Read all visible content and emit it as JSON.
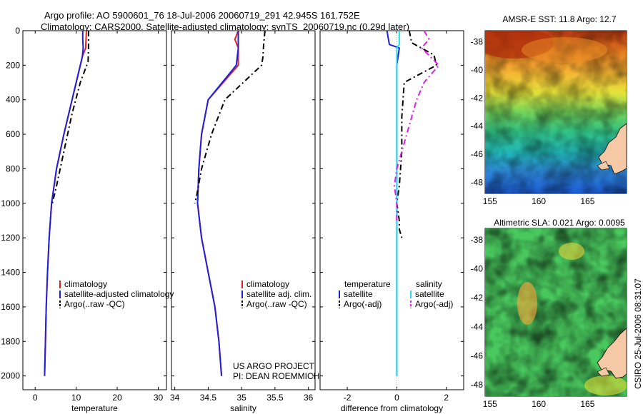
{
  "title": {
    "line1": "Argo profile: AO 5900601_76 18-Jul-2006 20060719_291 42.945S 161.752E",
    "line2": "Climatology: CARS2000. Satellite-adjusted climatology: synTS_20060719.nc (0.29d later)"
  },
  "credit": {
    "line1": "US ARGO PROJECT",
    "line2": "PI: DEAN ROEMMICH"
  },
  "timestamp": "CSIRO 25-Jul-2006 08:31:07",
  "colors": {
    "climatology": "#e0201e",
    "satellite": "#1f1fe0",
    "argo": "#000000",
    "satellite_salinity": "#22e0e8",
    "argo_adj_salinity": "#e020e0"
  },
  "depth_axis": {
    "ticks": [
      "0",
      "200",
      "400",
      "600",
      "800",
      "1000",
      "1200",
      "1400",
      "1600",
      "1800",
      "2000"
    ]
  },
  "chart_data": [
    {
      "type": "line",
      "xlabel": "temperature",
      "xticks": [
        "0",
        "10",
        "20",
        "30"
      ],
      "xlim": [
        -3,
        32
      ],
      "ylim": [
        2080,
        0
      ],
      "y_reversed": true,
      "legend": [
        "climatology",
        "satellite-adjusted climatology",
        "Argo(..raw -QC)"
      ],
      "series": [
        {
          "name": "climatology",
          "color": "#e0201e",
          "x": [
            12.5,
            12.4,
            12.3,
            11.5,
            9.0,
            7.0,
            5.2,
            4.0,
            3.4,
            3.0,
            2.7,
            2.5,
            2.3
          ],
          "y": [
            0,
            50,
            100,
            150,
            400,
            600,
            800,
            1000,
            1200,
            1400,
            1600,
            1800,
            2000
          ]
        },
        {
          "name": "satellite-adjusted climatology",
          "color": "#1f1fe0",
          "x": [
            11.6,
            11.6,
            11.7,
            11.5,
            9.0,
            7.0,
            5.2,
            4.0,
            3.4,
            3.0,
            2.7,
            2.5,
            2.3
          ],
          "y": [
            0,
            50,
            100,
            150,
            400,
            600,
            800,
            1000,
            1200,
            1400,
            1600,
            1800,
            2000
          ]
        },
        {
          "name": "Argo(..raw -QC)",
          "color": "#000000",
          "dash": true,
          "x": [
            13.0,
            13.0,
            13.0,
            12.9,
            11.0,
            9.0,
            7.0,
            5.2,
            4.2
          ],
          "y": [
            0,
            50,
            100,
            180,
            300,
            480,
            700,
            900,
            1000
          ]
        }
      ]
    },
    {
      "type": "line",
      "xlabel": "salinity",
      "xticks": [
        "34",
        "34.5",
        "35",
        "35.5",
        "36"
      ],
      "xlim": [
        33.95,
        36.1
      ],
      "ylim": [
        2080,
        0
      ],
      "y_reversed": true,
      "legend": [
        "climatology",
        "satellite adj. clim.",
        "Argo(..raw -QC)"
      ],
      "series": [
        {
          "name": "climatology",
          "color": "#e0201e",
          "x": [
            34.95,
            34.9,
            34.95,
            34.95,
            34.5,
            34.4,
            34.36,
            34.34,
            34.4,
            34.5,
            34.6,
            34.66,
            34.7
          ],
          "y": [
            0,
            50,
            100,
            200,
            400,
            600,
            800,
            1000,
            1200,
            1400,
            1600,
            1800,
            2000
          ]
        },
        {
          "name": "satellite adj. clim.",
          "color": "#1f1fe0",
          "x": [
            34.95,
            34.95,
            34.95,
            34.92,
            34.5,
            34.4,
            34.36,
            34.34,
            34.4,
            34.5,
            34.6,
            34.66,
            34.7
          ],
          "y": [
            0,
            50,
            100,
            200,
            400,
            600,
            800,
            1000,
            1200,
            1400,
            1600,
            1800,
            2000
          ]
        },
        {
          "name": "Argo(..raw -QC)",
          "color": "#000000",
          "dash": true,
          "x": [
            35.35,
            35.33,
            35.32,
            35.3,
            34.75,
            34.55,
            34.4,
            34.33,
            34.3
          ],
          "y": [
            0,
            80,
            150,
            200,
            400,
            600,
            800,
            950,
            1000
          ]
        }
      ]
    },
    {
      "type": "line",
      "xlabel": "difference from climatology",
      "xticks": [
        "-2",
        "0",
        "2"
      ],
      "xlim": [
        -3.1,
        2.7
      ],
      "ylim": [
        2080,
        0
      ],
      "y_reversed": true,
      "legend": [
        "temperature",
        "satellite",
        "Argo(-adj)",
        "salinity",
        "satellite",
        "Argo(-adj)"
      ],
      "series": [
        {
          "name": "temperature satellite",
          "color": "#1f1fe0",
          "x": [
            -0.4,
            -0.3,
            0.1,
            0.0,
            0.0
          ],
          "y": [
            0,
            80,
            100,
            200,
            2000
          ]
        },
        {
          "name": "temperature Argo(-adj)",
          "color": "#000000",
          "dash": true,
          "x": [
            0.5,
            0.6,
            1.5,
            1.6,
            0.3,
            0.2,
            0.2,
            0.1,
            0.0,
            0.1,
            0.1,
            0.2
          ],
          "y": [
            0,
            70,
            140,
            200,
            300,
            500,
            700,
            900,
            1000,
            1100,
            1150,
            1200
          ]
        },
        {
          "name": "salinity satellite",
          "color": "#22e0e8",
          "x": [
            0.1,
            0.1,
            0.0,
            0.0,
            0.0
          ],
          "y": [
            0,
            80,
            100,
            500,
            2000
          ]
        },
        {
          "name": "salinity Argo(-adj)",
          "color": "#e020e0",
          "dash": true,
          "x": [
            1.1,
            1.3,
            1.0,
            1.7,
            1.1,
            0.8,
            0.4,
            0.0,
            -0.1,
            0.0,
            0.0
          ],
          "y": [
            0,
            50,
            100,
            200,
            300,
            400,
            600,
            800,
            900,
            1000,
            1100
          ]
        }
      ]
    },
    {
      "type": "heatmap",
      "title": "AMSR-E SST: 11.8  Argo: 12.7",
      "xticks": [
        "155",
        "160",
        "165"
      ],
      "yticks": [
        "-38",
        "-40",
        "-42",
        "-44",
        "-46",
        "-48"
      ],
      "xlim": [
        154.5,
        169
      ],
      "ylim": [
        -48.8,
        -37.2
      ],
      "marker": {
        "lon": 161.752,
        "lat": -42.945
      }
    },
    {
      "type": "heatmap",
      "title": "Altimetric SLA: 0.021  Argo: 0.0095",
      "xticks": [
        "155",
        "160",
        "165"
      ],
      "yticks": [
        "-38",
        "-40",
        "-42",
        "-44",
        "-46",
        "-48"
      ],
      "xlim": [
        154.5,
        169
      ],
      "ylim": [
        -48.8,
        -37.2
      ],
      "marker": {
        "lon": 161.752,
        "lat": -42.945
      }
    }
  ]
}
